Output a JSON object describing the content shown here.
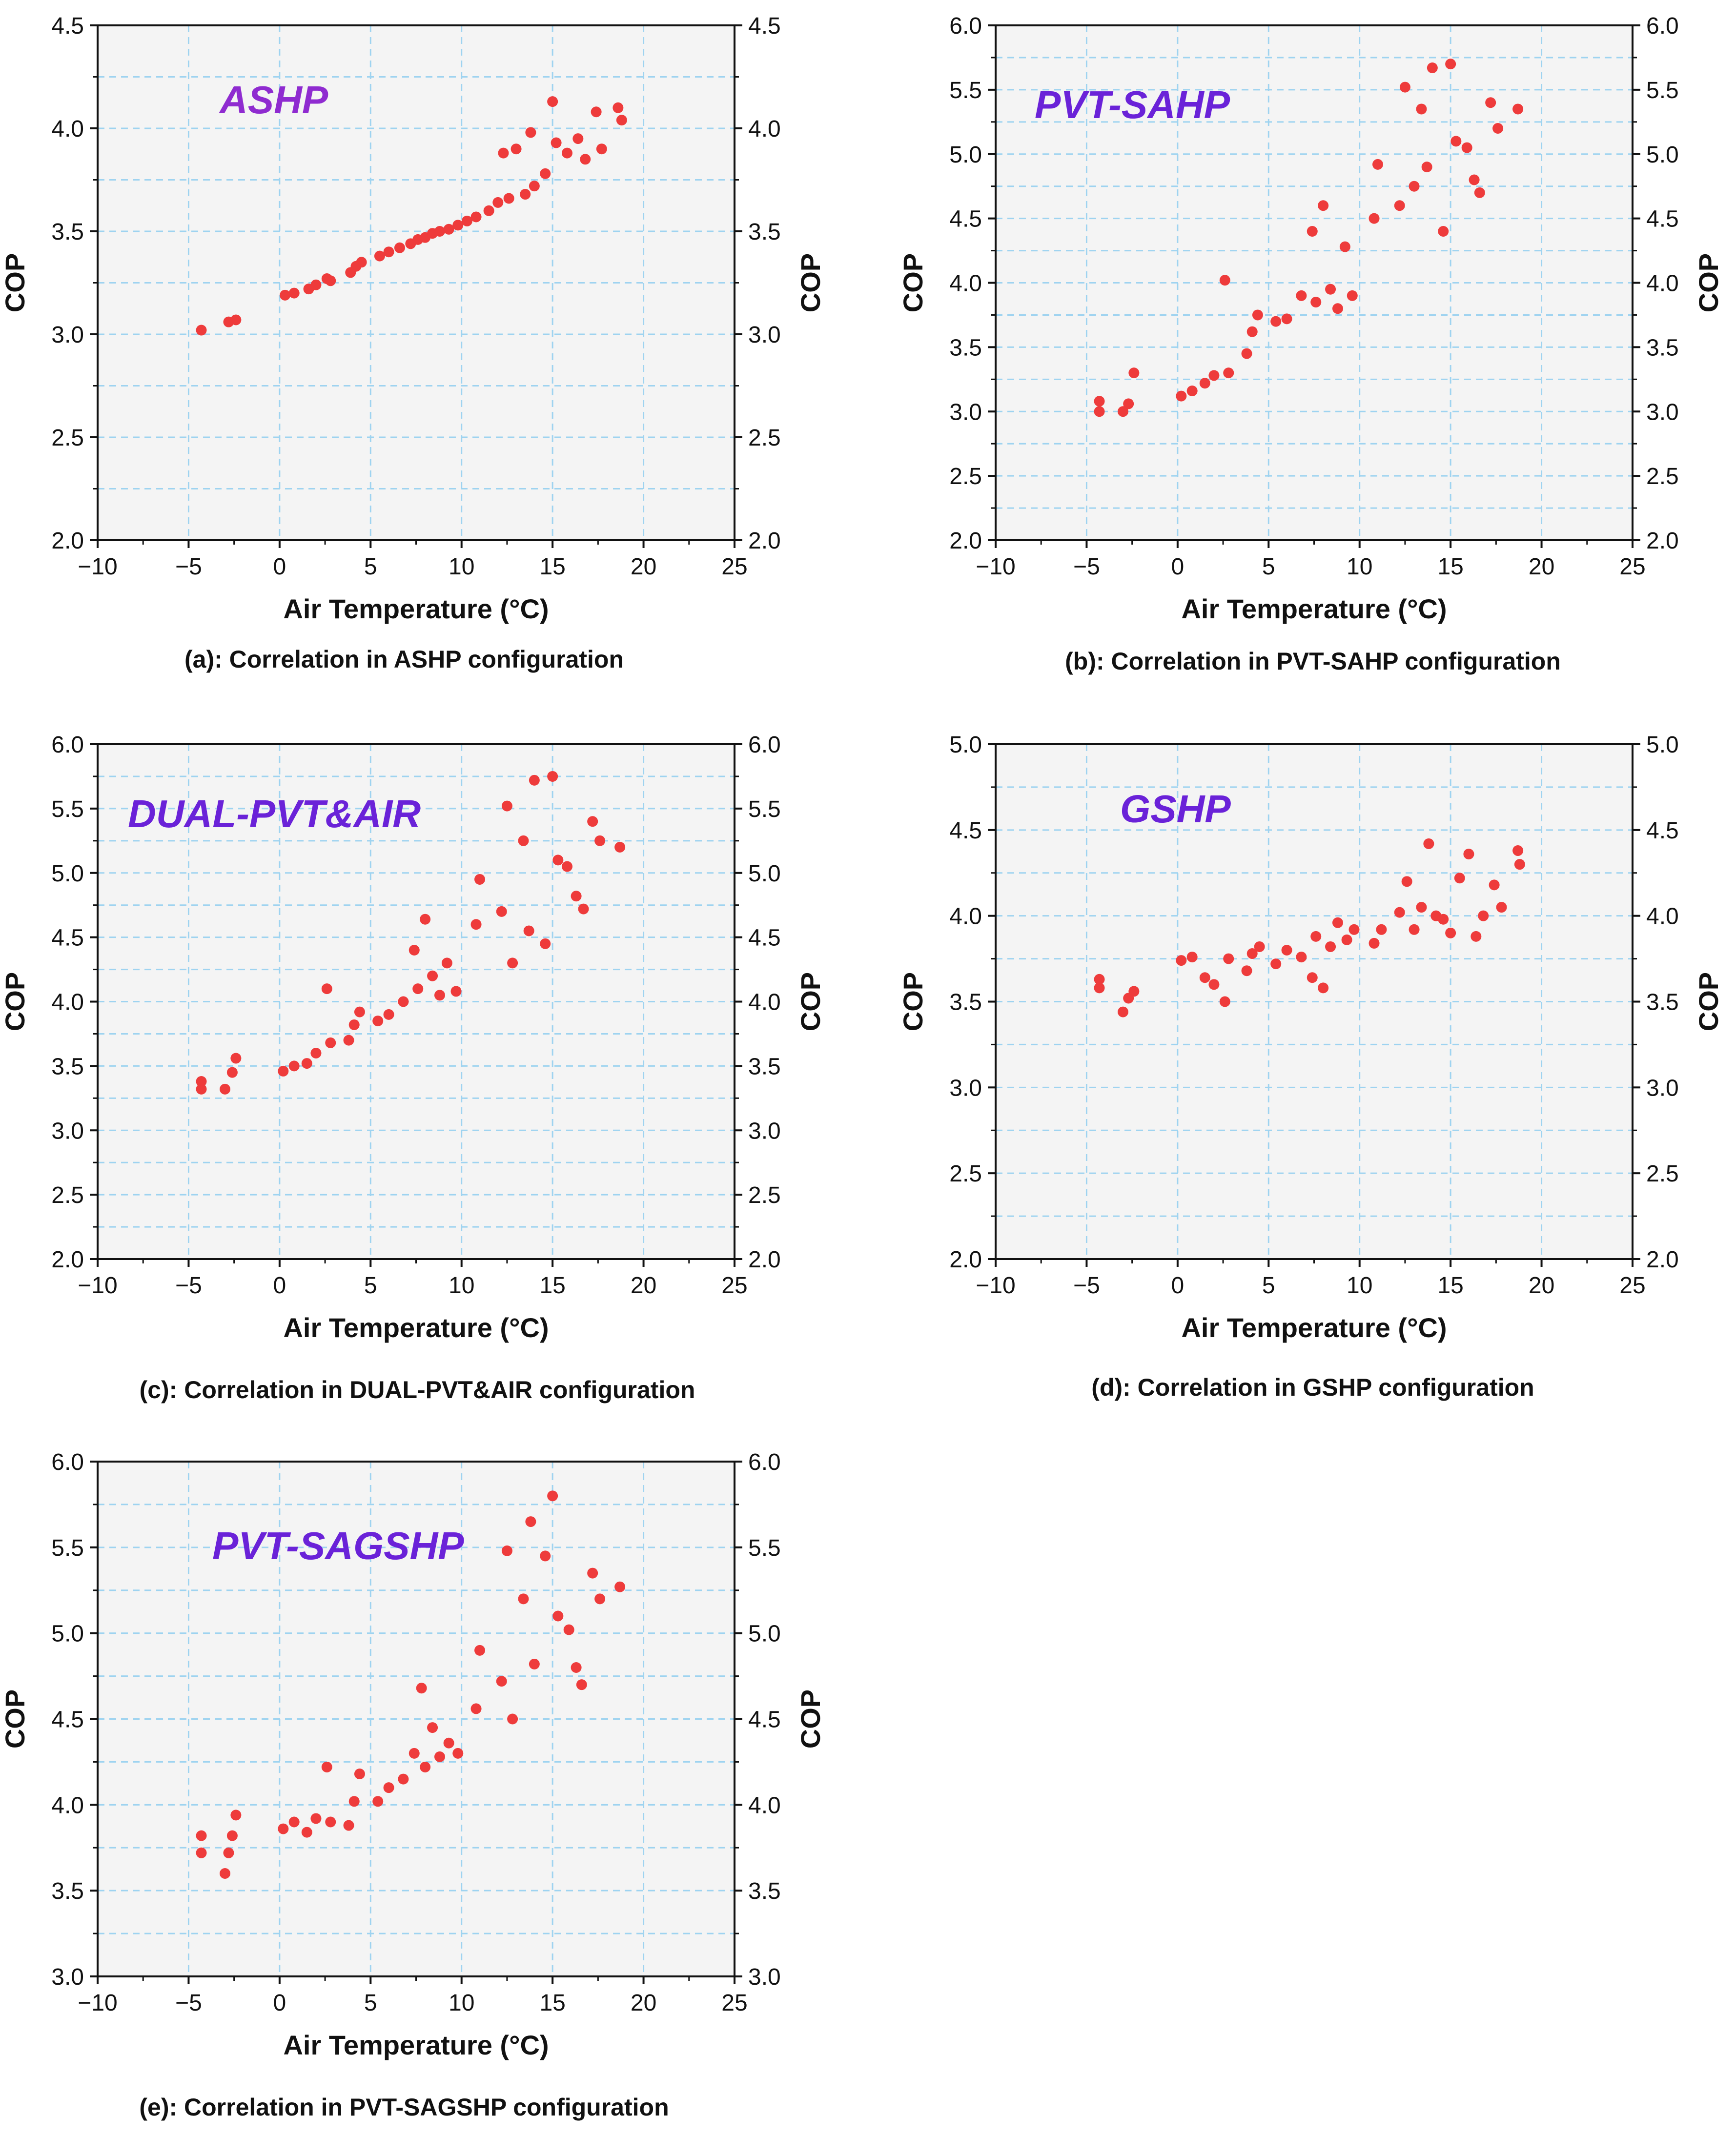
{
  "figure": {
    "colors": {
      "point": "#EE3B3B",
      "grid": "#9ED3F0",
      "plot_bg": "#F4F4F4",
      "axis": "#111111",
      "title": "#7B2FD6"
    }
  },
  "chart_data": [
    {
      "id": "a",
      "type": "scatter",
      "title": "ASHP",
      "title_color": "#8F2BD0",
      "caption": "(a): Correlation in ASHP configuration",
      "xlabel": "Air Temperature (°C)",
      "ylabel": "COP",
      "ylabel_right": "COP",
      "xlim": [
        -10,
        25
      ],
      "ylim": [
        2.0,
        4.5
      ],
      "xticks": [
        -10,
        -5,
        0,
        5,
        10,
        15,
        20,
        25
      ],
      "xtick_labels": [
        "−10",
        "−5",
        "0",
        "5",
        "10",
        "15",
        "20",
        "25"
      ],
      "yticks": [
        2.0,
        2.5,
        3.0,
        3.5,
        4.0,
        4.5
      ],
      "ytick_labels": [
        "2.0",
        "2.5",
        "3.0",
        "3.5",
        "4.0",
        "4.5"
      ],
      "x": [
        -4.3,
        -2.8,
        -2.4,
        0.3,
        0.8,
        1.6,
        2.0,
        2.6,
        2.8,
        3.9,
        4.2,
        4.5,
        5.5,
        6.0,
        6.6,
        7.2,
        7.6,
        8.0,
        8.4,
        8.8,
        9.3,
        9.8,
        10.3,
        10.8,
        11.5,
        12.0,
        12.3,
        12.6,
        13.0,
        13.5,
        13.8,
        14.0,
        14.6,
        15.0,
        15.2,
        15.8,
        16.4,
        16.8,
        17.4,
        17.7,
        18.6,
        18.8
      ],
      "y": [
        3.02,
        3.06,
        3.07,
        3.19,
        3.2,
        3.22,
        3.24,
        3.27,
        3.26,
        3.3,
        3.33,
        3.35,
        3.38,
        3.4,
        3.42,
        3.44,
        3.46,
        3.47,
        3.49,
        3.5,
        3.51,
        3.53,
        3.55,
        3.57,
        3.6,
        3.64,
        3.88,
        3.66,
        3.9,
        3.68,
        3.98,
        3.72,
        3.78,
        4.13,
        3.93,
        3.88,
        3.95,
        3.85,
        4.08,
        3.9,
        4.1,
        4.04
      ]
    },
    {
      "id": "b",
      "type": "scatter",
      "title": "PVT-SAHP",
      "title_color": "#6A22D8",
      "caption": "(b): Correlation in PVT-SAHP configuration",
      "xlabel": "Air Temperature (°C)",
      "ylabel": "COP",
      "ylabel_right": "COP",
      "xlim": [
        -10,
        25
      ],
      "ylim": [
        2.0,
        6.0
      ],
      "xticks": [
        -10,
        -5,
        0,
        5,
        10,
        15,
        20,
        25
      ],
      "xtick_labels": [
        "−10",
        "−5",
        "0",
        "5",
        "10",
        "15",
        "20",
        "25"
      ],
      "yticks": [
        2.0,
        2.5,
        3.0,
        3.5,
        4.0,
        4.5,
        5.0,
        5.5,
        6.0
      ],
      "ytick_labels": [
        "2.0",
        "2.5",
        "3.0",
        "3.5",
        "4.0",
        "4.5",
        "5.0",
        "5.5",
        "6.0"
      ],
      "x": [
        -4.3,
        -4.3,
        -3.0,
        -2.7,
        -2.4,
        0.2,
        0.8,
        1.5,
        2.0,
        2.6,
        2.8,
        3.8,
        4.1,
        4.4,
        5.4,
        6.0,
        6.8,
        7.4,
        7.6,
        8.0,
        8.4,
        8.8,
        9.2,
        9.6,
        10.8,
        11.0,
        12.2,
        12.5,
        13.0,
        13.4,
        13.7,
        14.0,
        14.6,
        15.0,
        15.3,
        15.9,
        16.3,
        16.6,
        17.2,
        17.6,
        18.7
      ],
      "y": [
        3.0,
        3.08,
        3.0,
        3.06,
        3.3,
        3.12,
        3.16,
        3.22,
        3.28,
        4.02,
        3.3,
        3.45,
        3.62,
        3.75,
        3.7,
        3.72,
        3.9,
        4.4,
        3.85,
        4.6,
        3.95,
        3.8,
        4.28,
        3.9,
        4.5,
        4.92,
        4.6,
        5.52,
        4.75,
        5.35,
        4.9,
        5.67,
        4.4,
        5.7,
        5.1,
        5.05,
        4.8,
        4.7,
        5.4,
        5.2,
        5.35
      ]
    },
    {
      "id": "c",
      "type": "scatter",
      "title": "DUAL-PVT&AIR",
      "title_color": "#6A22D8",
      "caption": "(c): Correlation in DUAL-PVT&AIR configuration",
      "xlabel": "Air Temperature (°C)",
      "ylabel": "COP",
      "ylabel_right": "COP",
      "xlim": [
        -10,
        25
      ],
      "ylim": [
        2.0,
        6.0
      ],
      "xticks": [
        -10,
        -5,
        0,
        5,
        10,
        15,
        20,
        25
      ],
      "xtick_labels": [
        "−10",
        "−5",
        "0",
        "5",
        "10",
        "15",
        "20",
        "25"
      ],
      "yticks": [
        2.0,
        2.5,
        3.0,
        3.5,
        4.0,
        4.5,
        5.0,
        5.5,
        6.0
      ],
      "ytick_labels": [
        "2.0",
        "2.5",
        "3.0",
        "3.5",
        "4.0",
        "4.5",
        "5.0",
        "5.5",
        "6.0"
      ],
      "x": [
        -4.3,
        -4.3,
        -3.0,
        -2.6,
        -2.4,
        0.2,
        0.8,
        1.5,
        2.0,
        2.6,
        2.8,
        3.8,
        4.1,
        4.4,
        5.4,
        6.0,
        6.8,
        7.4,
        7.6,
        8.0,
        8.4,
        8.8,
        9.2,
        9.7,
        10.8,
        11.0,
        12.2,
        12.5,
        12.8,
        13.4,
        13.7,
        14.0,
        14.6,
        15.0,
        15.3,
        15.8,
        16.3,
        16.7,
        17.2,
        17.6,
        18.7
      ],
      "y": [
        3.32,
        3.38,
        3.32,
        3.45,
        3.56,
        3.46,
        3.5,
        3.52,
        3.6,
        4.1,
        3.68,
        3.7,
        3.82,
        3.92,
        3.85,
        3.9,
        4.0,
        4.4,
        4.1,
        4.64,
        4.2,
        4.05,
        4.3,
        4.08,
        4.6,
        4.95,
        4.7,
        5.52,
        4.3,
        5.25,
        4.55,
        5.72,
        4.45,
        5.75,
        5.1,
        5.05,
        4.82,
        4.72,
        5.4,
        5.25,
        5.2
      ]
    },
    {
      "id": "d",
      "type": "scatter",
      "title": "GSHP",
      "title_color": "#6A22D8",
      "caption": "(d): Correlation in GSHP configuration",
      "xlabel": "Air Temperature (°C)",
      "ylabel": "COP",
      "ylabel_right": "COP",
      "xlim": [
        -10,
        25
      ],
      "ylim": [
        2.0,
        5.0
      ],
      "xticks": [
        -10,
        -5,
        0,
        5,
        10,
        15,
        20,
        25
      ],
      "xtick_labels": [
        "−10",
        "−5",
        "0",
        "5",
        "10",
        "15",
        "20",
        "25"
      ],
      "yticks": [
        2.0,
        2.5,
        3.0,
        3.5,
        4.0,
        4.5,
        5.0
      ],
      "ytick_labels": [
        "2.0",
        "2.5",
        "3.0",
        "3.5",
        "4.0",
        "4.5",
        "5.0"
      ],
      "x": [
        -4.3,
        -4.3,
        -3.0,
        -2.7,
        -2.4,
        0.2,
        0.8,
        1.5,
        2.0,
        2.6,
        2.8,
        3.8,
        4.1,
        4.5,
        5.4,
        6.0,
        6.8,
        7.4,
        7.6,
        8.0,
        8.4,
        8.8,
        9.3,
        9.7,
        10.8,
        11.2,
        12.2,
        12.6,
        13.0,
        13.4,
        13.8,
        14.2,
        14.6,
        15.0,
        15.5,
        16.0,
        16.4,
        16.8,
        17.4,
        17.8,
        18.7,
        18.8
      ],
      "y": [
        3.58,
        3.63,
        3.44,
        3.52,
        3.56,
        3.74,
        3.76,
        3.64,
        3.6,
        3.5,
        3.75,
        3.68,
        3.78,
        3.82,
        3.72,
        3.8,
        3.76,
        3.64,
        3.88,
        3.58,
        3.82,
        3.96,
        3.86,
        3.92,
        3.84,
        3.92,
        4.02,
        4.2,
        3.92,
        4.05,
        4.42,
        4.0,
        3.98,
        3.9,
        4.22,
        4.36,
        3.88,
        4.0,
        4.18,
        4.05,
        4.38,
        4.3
      ]
    },
    {
      "id": "e",
      "type": "scatter",
      "title": "PVT-SAGSHP",
      "title_color": "#6A22D8",
      "caption": "(e): Correlation in PVT-SAGSHP configuration",
      "xlabel": "Air Temperature (°C)",
      "ylabel": "COP",
      "ylabel_right": "COP",
      "xlim": [
        -10,
        25
      ],
      "ylim": [
        3.0,
        6.0
      ],
      "xticks": [
        -10,
        -5,
        0,
        5,
        10,
        15,
        20,
        25
      ],
      "xtick_labels": [
        "−10",
        "−5",
        "0",
        "5",
        "10",
        "15",
        "20",
        "25"
      ],
      "yticks": [
        3.0,
        3.5,
        4.0,
        4.5,
        5.0,
        5.5,
        6.0
      ],
      "ytick_labels": [
        "3.0",
        "3.5",
        "4.0",
        "4.5",
        "5.0",
        "5.5",
        "6.0"
      ],
      "x": [
        -4.3,
        -4.3,
        -3.0,
        -2.8,
        -2.6,
        -2.4,
        0.2,
        0.8,
        1.5,
        2.0,
        2.6,
        2.8,
        3.8,
        4.1,
        4.4,
        5.4,
        6.0,
        6.8,
        7.4,
        7.8,
        8.0,
        8.4,
        8.8,
        9.3,
        9.8,
        10.8,
        11.0,
        12.2,
        12.5,
        12.8,
        13.4,
        13.8,
        14.0,
        14.6,
        15.0,
        15.3,
        15.9,
        16.3,
        16.6,
        17.2,
        17.6,
        18.7
      ],
      "y": [
        3.72,
        3.82,
        3.6,
        3.72,
        3.82,
        3.94,
        3.86,
        3.9,
        3.84,
        3.92,
        4.22,
        3.9,
        3.88,
        4.02,
        4.18,
        4.02,
        4.1,
        4.15,
        4.3,
        4.68,
        4.22,
        4.45,
        4.28,
        4.36,
        4.3,
        4.56,
        4.9,
        4.72,
        5.48,
        4.5,
        5.2,
        5.65,
        4.82,
        5.45,
        5.8,
        5.1,
        5.02,
        4.8,
        4.7,
        5.35,
        5.2,
        5.27
      ]
    }
  ]
}
